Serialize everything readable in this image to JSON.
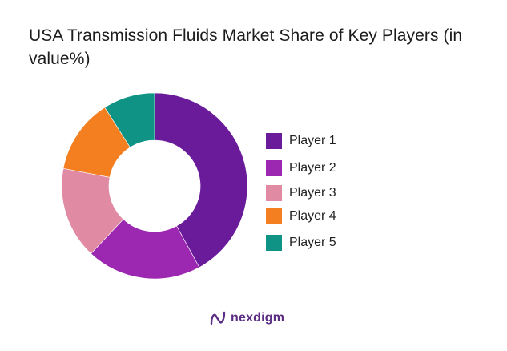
{
  "title": "USA Transmission Fluids Market Share of Key Players (in value%)",
  "chart_data": {
    "type": "pie",
    "variant": "donut",
    "title": "USA Transmission Fluids Market Share of Key Players (in value%)",
    "categories": [
      "Player 1",
      "Player 2",
      "Player 3",
      "Player 4",
      "Player 5"
    ],
    "values": [
      42,
      20,
      16,
      13,
      9
    ],
    "unit": "%",
    "colors": [
      "#6a1b9a",
      "#9c27b0",
      "#e08aa4",
      "#f47f20",
      "#0e9384"
    ],
    "legend_position": "right",
    "data_labels": false
  },
  "legend": [
    {
      "label": "Player 1",
      "color": "#6a1b9a"
    },
    {
      "label": "Player 2",
      "color": "#9c27b0"
    },
    {
      "label": "Player 3",
      "color": "#e08aa4"
    },
    {
      "label": "Player 4",
      "color": "#f47f20"
    },
    {
      "label": "Player 5",
      "color": "#0e9384"
    }
  ],
  "logo": {
    "text": "nexdigm",
    "icon": "nexdigm-logo-icon",
    "color": "#5a2d82"
  }
}
